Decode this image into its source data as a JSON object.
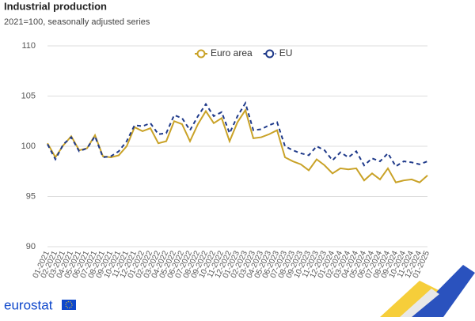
{
  "chart_data": {
    "type": "line",
    "title": "Industrial production",
    "subtitle": "2021=100, seasonally adjusted series",
    "logo_text": "eurostat",
    "categories": [
      "01-2021",
      "02-2021",
      "03-2021",
      "04-2021",
      "05-2021",
      "06-2021",
      "07-2021",
      "08-2021",
      "09-2021",
      "10-2021",
      "11-2021",
      "12-2021",
      "01-2022",
      "02-2022",
      "03-2022",
      "04-2022",
      "05-2022",
      "06-2022",
      "07-2022",
      "08-2022",
      "09-2022",
      "10-2022",
      "11-2022",
      "12-2022",
      "01-2023",
      "02-2023",
      "03-2023",
      "04-2023",
      "05-2023",
      "06-2023",
      "07-2023",
      "08-2023",
      "09-2023",
      "10-2023",
      "11-2023",
      "12-2023",
      "01-2024",
      "02-2024",
      "03-2024",
      "04-2024",
      "05-2024",
      "06-2024",
      "07-2024",
      "08-2024",
      "09-2024",
      "10-2024",
      "11-2024",
      "12-2024",
      "01-2025"
    ],
    "series": [
      {
        "name": "Euro area",
        "color": "#c9a227",
        "dashed": false,
        "values": [
          100.3,
          98.9,
          100.1,
          101.0,
          99.6,
          99.8,
          101.1,
          99.0,
          98.9,
          99.1,
          100.0,
          101.9,
          101.5,
          101.8,
          100.3,
          100.5,
          102.5,
          102.2,
          100.5,
          102.2,
          103.5,
          102.3,
          102.8,
          100.5,
          102.4,
          103.6,
          100.8,
          100.9,
          101.2,
          101.6,
          98.9,
          98.5,
          98.2,
          97.6,
          98.7,
          98.1,
          97.3,
          97.8,
          97.7,
          97.8,
          96.6,
          97.3,
          96.7,
          97.8,
          96.4,
          96.6,
          96.7,
          96.4,
          97.1
        ]
      },
      {
        "name": "EU",
        "color": "#1f3a8a",
        "dashed": true,
        "values": [
          100.2,
          98.7,
          100.2,
          100.9,
          99.5,
          99.8,
          101.0,
          98.9,
          99.0,
          99.5,
          100.5,
          102.1,
          102.0,
          102.3,
          101.2,
          101.3,
          103.1,
          102.8,
          101.6,
          103.0,
          104.2,
          103.0,
          103.4,
          101.3,
          103.0,
          104.3,
          101.6,
          101.7,
          102.1,
          102.4,
          100.0,
          99.6,
          99.3,
          99.1,
          100.0,
          99.6,
          98.6,
          99.4,
          98.9,
          99.5,
          98.1,
          98.8,
          98.5,
          99.3,
          98.0,
          98.5,
          98.4,
          98.2,
          98.5
        ]
      }
    ],
    "ylim": [
      90,
      110
    ],
    "yticks": [
      90,
      95,
      100,
      105,
      110
    ],
    "grid": true
  }
}
